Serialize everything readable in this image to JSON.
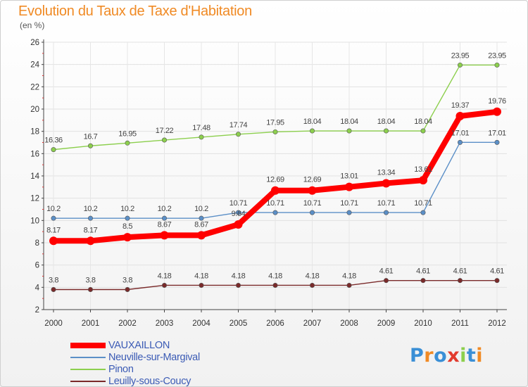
{
  "chart_data": {
    "type": "line",
    "title": "Evolution du Taux de Taxe d'Habitation",
    "subtitle": "(en %)",
    "xlabel": "",
    "ylabel": "",
    "x": [
      "2000",
      "2001",
      "2002",
      "2003",
      "2004",
      "2005",
      "2006",
      "2007",
      "2008",
      "2009",
      "2010",
      "2011",
      "2012"
    ],
    "ylim": [
      2,
      26
    ],
    "yticks": [
      2,
      4,
      6,
      8,
      10,
      12,
      14,
      16,
      18,
      20,
      22,
      24,
      26
    ],
    "grid": true,
    "legend_position": "bottom-left",
    "series": [
      {
        "name": "VAUXAILLON",
        "color": "#ff0000",
        "values": [
          8.17,
          8.17,
          8.5,
          8.67,
          8.67,
          9.64,
          12.69,
          12.69,
          13.01,
          13.34,
          13.61,
          19.37,
          19.76
        ],
        "labels": [
          "8.17",
          "8.17",
          "8.5",
          "8.67",
          "8.67",
          "9.64",
          "12.69",
          "12.69",
          "13.01",
          "13.34",
          "13.61",
          "19.37",
          "19.76"
        ]
      },
      {
        "name": "Neuville-sur-Margival",
        "color": "#5b8fc7",
        "values": [
          10.2,
          10.2,
          10.2,
          10.2,
          10.2,
          10.71,
          10.71,
          10.71,
          10.71,
          10.71,
          10.71,
          17.01,
          17.01
        ],
        "labels": [
          "10.2",
          "10.2",
          "10.2",
          "10.2",
          "10.2",
          "10.71",
          "10.71",
          "10.71",
          "10.71",
          "10.71",
          "10.71",
          "17.01",
          "17.01"
        ]
      },
      {
        "name": "Pinon",
        "color": "#8ccf4d",
        "values": [
          16.36,
          16.7,
          16.95,
          17.22,
          17.48,
          17.74,
          17.95,
          18.04,
          18.04,
          18.04,
          18.04,
          23.95,
          23.95
        ],
        "labels": [
          "16.36",
          "16.7",
          "16.95",
          "17.22",
          "17.48",
          "17.74",
          "17.95",
          "18.04",
          "18.04",
          "18.04",
          "18.04",
          "23.95",
          "23.95"
        ]
      },
      {
        "name": "Leuilly-sous-Coucy",
        "color": "#7a2a2a",
        "values": [
          3.8,
          3.8,
          3.8,
          4.18,
          4.18,
          4.18,
          4.18,
          4.18,
          4.18,
          4.61,
          4.61,
          4.61,
          4.61
        ],
        "labels": [
          "3.8",
          "3.8",
          "3.8",
          "4.18",
          "4.18",
          "4.18",
          "4.18",
          "4.18",
          "4.18",
          "4.61",
          "4.61",
          "4.61",
          "4.61"
        ]
      }
    ]
  },
  "logo": {
    "text": "Proxiti",
    "letters": [
      "P",
      "r",
      "o",
      "x",
      "i",
      "t",
      "i"
    ],
    "colors": [
      "#3a8fd6",
      "#f08a24",
      "#3a8fd6",
      "#e23b2e",
      "#8ccf4d",
      "#3a8fd6",
      "#f08a24"
    ]
  }
}
